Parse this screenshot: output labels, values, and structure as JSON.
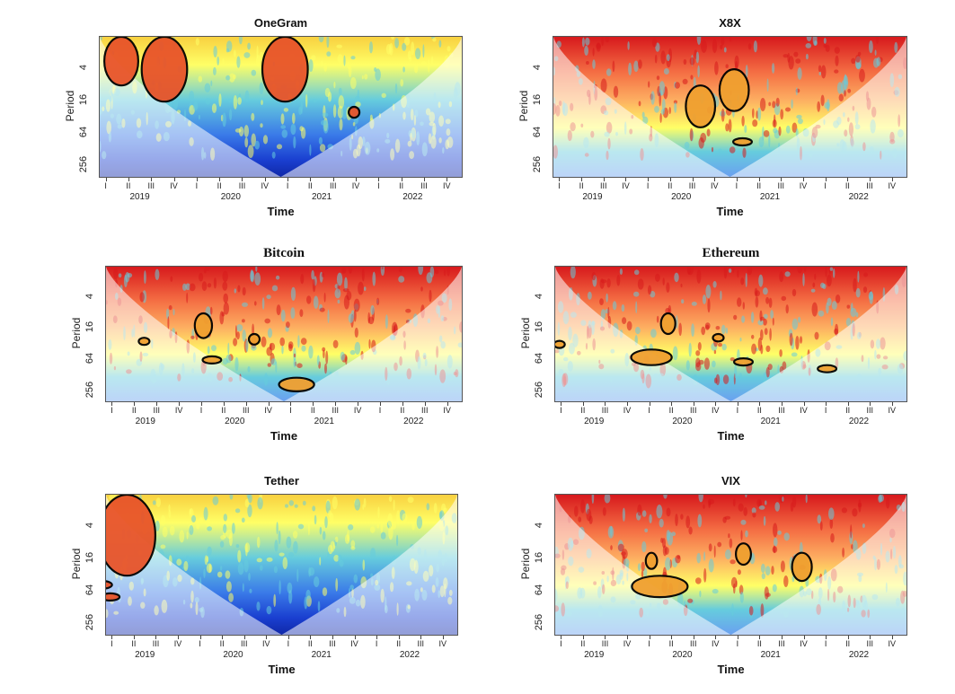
{
  "colors": {
    "high": "#d7191c",
    "mid_high": "#fdae61",
    "mid": "#ffff66",
    "mid_low": "#66ccdd",
    "low": "#1a3fd0",
    "cone_outside": "#ffffff"
  },
  "chart_data": [
    {
      "type": "heatmap",
      "title": "OneGram",
      "xlabel": "Time",
      "ylabel": "Period",
      "y_ticks": [
        "4",
        "16",
        "64",
        "256"
      ],
      "x_quarters": [
        "I",
        "II",
        "III",
        "IV",
        "I",
        "II",
        "III",
        "IV",
        "I",
        "II",
        "III",
        "IV",
        "I",
        "II",
        "III",
        "IV"
      ],
      "x_years": [
        "2019",
        "2020",
        "2021",
        "2022"
      ],
      "dominant_power": "low",
      "significant_regions": [
        {
          "time": 2019.0,
          "period_from": 1,
          "period_to": 8
        },
        {
          "time": 2019.5,
          "period_from": 1,
          "period_to": 16
        },
        {
          "time": 2020.9,
          "period_from": 1,
          "period_to": 16
        },
        {
          "time": 2021.7,
          "period_from": 20,
          "period_to": 32
        }
      ]
    },
    {
      "type": "heatmap",
      "title": "X8X",
      "xlabel": "Time",
      "ylabel": "Period",
      "y_ticks": [
        "4",
        "16",
        "64",
        "256"
      ],
      "x_quarters": [
        "I",
        "II",
        "III",
        "IV",
        "I",
        "II",
        "III",
        "IV",
        "I",
        "II",
        "III",
        "IV",
        "I",
        "II",
        "III",
        "IV"
      ],
      "x_years": [
        "2019",
        "2020",
        "2021",
        "2022"
      ],
      "dominant_power": "high",
      "significant_regions": [
        {
          "time": 2020.5,
          "period_from": 8,
          "period_to": 48
        },
        {
          "time": 2020.9,
          "period_from": 4,
          "period_to": 24
        },
        {
          "time": 2021.0,
          "period_from": 80,
          "period_to": 100
        }
      ]
    },
    {
      "type": "heatmap",
      "title": "Bitcoin",
      "xlabel": "Time",
      "ylabel": "Period",
      "y_ticks": [
        "4",
        "16",
        "64",
        "256"
      ],
      "x_quarters": [
        "I",
        "II",
        "III",
        "IV",
        "I",
        "II",
        "III",
        "IV",
        "I",
        "II",
        "III",
        "IV",
        "I",
        "II",
        "III",
        "IV"
      ],
      "x_years": [
        "2019",
        "2020",
        "2021",
        "2022"
      ],
      "dominant_power": "high",
      "significant_regions": [
        {
          "time": 2019.2,
          "period_from": 24,
          "period_to": 32
        },
        {
          "time": 2019.9,
          "period_from": 8,
          "period_to": 24
        },
        {
          "time": 2020.0,
          "period_from": 56,
          "period_to": 72
        },
        {
          "time": 2020.5,
          "period_from": 20,
          "period_to": 32
        },
        {
          "time": 2021.0,
          "period_from": 140,
          "period_to": 256
        }
      ]
    },
    {
      "type": "heatmap",
      "title": "Ethereum",
      "xlabel": "Time",
      "ylabel": "Period",
      "y_ticks": [
        "4",
        "16",
        "64",
        "256"
      ],
      "x_quarters": [
        "I",
        "II",
        "III",
        "IV",
        "I",
        "II",
        "III",
        "IV",
        "I",
        "II",
        "III",
        "IV",
        "I",
        "II",
        "III",
        "IV"
      ],
      "x_years": [
        "2019",
        "2020",
        "2021",
        "2022"
      ],
      "dominant_power": "high",
      "significant_regions": [
        {
          "time": 2018.8,
          "period_from": 28,
          "period_to": 36
        },
        {
          "time": 2019.9,
          "period_from": 40,
          "period_to": 80
        },
        {
          "time": 2020.1,
          "period_from": 8,
          "period_to": 20
        },
        {
          "time": 2020.7,
          "period_from": 20,
          "period_to": 28
        },
        {
          "time": 2021.0,
          "period_from": 60,
          "period_to": 80
        },
        {
          "time": 2022.0,
          "period_from": 80,
          "period_to": 110
        }
      ]
    },
    {
      "type": "heatmap",
      "title": "Tether",
      "xlabel": "Time",
      "ylabel": "Period",
      "y_ticks": [
        "4",
        "16",
        "64",
        "256"
      ],
      "x_quarters": [
        "I",
        "II",
        "III",
        "IV",
        "I",
        "II",
        "III",
        "IV",
        "I",
        "II",
        "III",
        "IV",
        "I",
        "II",
        "III",
        "IV"
      ],
      "x_years": [
        "2019",
        "2020",
        "2021",
        "2022"
      ],
      "dominant_power": "low",
      "significant_regions": [
        {
          "time": 2019.0,
          "period_from": 1,
          "period_to": 32
        },
        {
          "time": 2018.7,
          "period_from": 40,
          "period_to": 56
        },
        {
          "time": 2018.8,
          "period_from": 70,
          "period_to": 90
        }
      ]
    },
    {
      "type": "heatmap",
      "title": "VIX",
      "xlabel": "Time",
      "ylabel": "Period",
      "y_ticks": [
        "4",
        "16",
        "64",
        "256"
      ],
      "x_quarters": [
        "I",
        "II",
        "III",
        "IV",
        "I",
        "II",
        "III",
        "IV",
        "I",
        "II",
        "III",
        "IV",
        "I",
        "II",
        "III",
        "IV"
      ],
      "x_years": [
        "2019",
        "2020",
        "2021",
        "2022"
      ],
      "dominant_power": "high",
      "significant_regions": [
        {
          "time": 2019.9,
          "period_from": 12,
          "period_to": 24
        },
        {
          "time": 2020.0,
          "period_from": 32,
          "period_to": 80
        },
        {
          "time": 2021.0,
          "period_from": 8,
          "period_to": 20
        },
        {
          "time": 2021.7,
          "period_from": 12,
          "period_to": 40
        }
      ]
    }
  ]
}
